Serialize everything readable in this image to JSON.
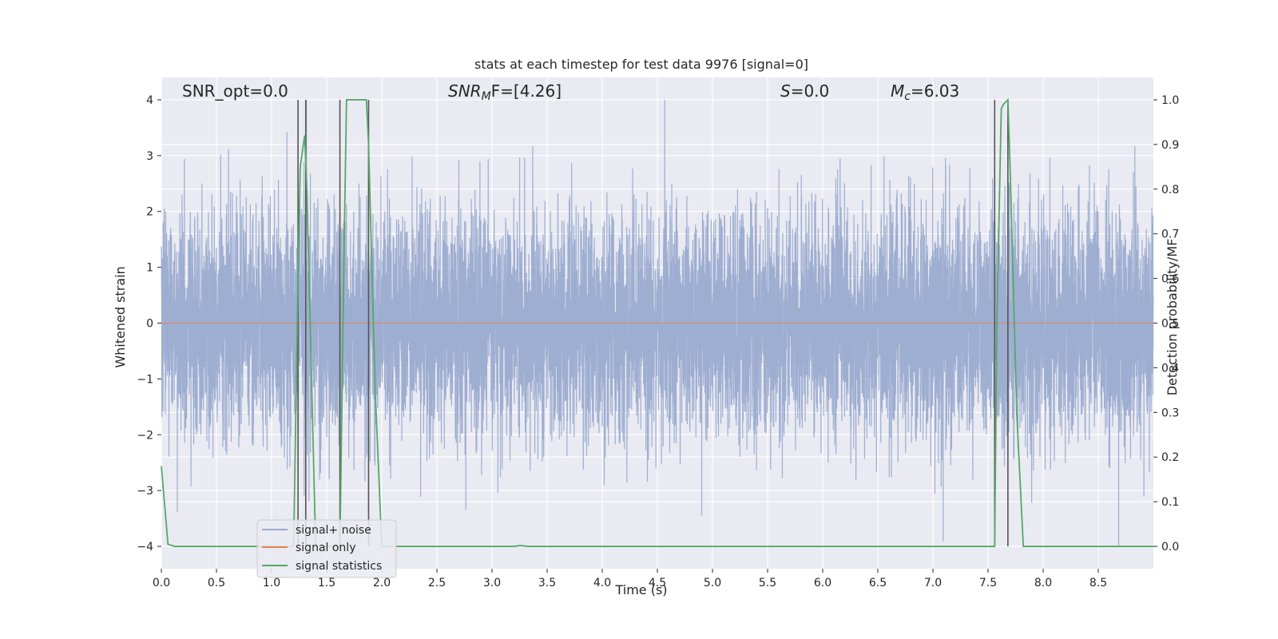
{
  "chart_data": {
    "type": "line",
    "title": "stats at each timestep for test data 9976 [signal=0]",
    "xlabel": "Time (s)",
    "ylabel": "Whitened strain",
    "ylabel_right": "Detection probability/MF",
    "xlim": [
      0.0,
      9.0
    ],
    "ylim": [
      -4.4,
      4.4
    ],
    "ylim_right": [
      -0.05,
      1.05
    ],
    "x_ticks": [
      "0.0",
      "0.5",
      "1.0",
      "1.5",
      "2.0",
      "2.5",
      "3.0",
      "3.5",
      "4.0",
      "4.5",
      "5.0",
      "5.5",
      "6.0",
      "6.5",
      "7.0",
      "7.5",
      "8.0",
      "8.5"
    ],
    "y_ticks": [
      "4",
      "3",
      "2",
      "1",
      "0",
      "−1",
      "−2",
      "−3",
      "−4"
    ],
    "y_ticks_right": [
      "1.0",
      "0.9",
      "0.8",
      "0.7",
      "0.6",
      "0.5",
      "0.4",
      "0.3",
      "0.2",
      "0.1",
      "0.0"
    ],
    "grid": true,
    "legend_position": "lower-left",
    "annotations": {
      "snr_opt": "SNR_opt=0.0",
      "snr_mf_main": "SNR",
      "snr_mf_sub": "M",
      "snr_mf_rest": "F=[4.26]",
      "s_main": "S",
      "s_rest": "=0.0",
      "mc_main": "M",
      "mc_sub": "c",
      "mc_rest": "=6.03"
    },
    "series": [
      {
        "name": "signal+ noise",
        "color": "#9aabcf",
        "description_of_values": "whitened noise, amplitude roughly ±2.5 with spikes to ±4"
      },
      {
        "name": "signal only",
        "color": "#dd8452",
        "x": [
          0.0,
          9.0
        ],
        "y": [
          0.0,
          0.0
        ]
      },
      {
        "name": "signal statistics",
        "color": "#55a868",
        "axis": "right",
        "x": [
          0.0,
          0.06,
          0.12,
          0.2,
          1.0,
          1.2,
          1.24,
          1.26,
          1.3,
          1.32,
          1.4,
          1.6,
          1.62,
          1.66,
          1.68,
          1.7,
          1.86,
          1.88,
          1.94,
          2.0,
          3.2,
          3.26,
          3.32,
          7.5,
          7.56,
          7.58,
          7.62,
          7.64,
          7.68,
          7.7,
          7.76,
          7.82,
          9.0
        ],
        "y": [
          0.18,
          0.005,
          0.0,
          0.0,
          0.0,
          0.0,
          0.6,
          0.85,
          0.92,
          0.8,
          0.0,
          0.0,
          0.0,
          0.7,
          1.0,
          1.0,
          1.0,
          0.9,
          0.35,
          0.0,
          0.0,
          0.002,
          0.0,
          0.0,
          0.0,
          0.5,
          0.98,
          0.99,
          1.0,
          0.85,
          0.3,
          0.0,
          0.0
        ]
      }
    ],
    "vertical_markers": {
      "color": "#555555",
      "x": [
        1.24,
        1.31,
        1.62,
        1.88,
        7.56,
        7.68
      ],
      "y_top": 1.0,
      "y_bottom": 0.0
    }
  }
}
